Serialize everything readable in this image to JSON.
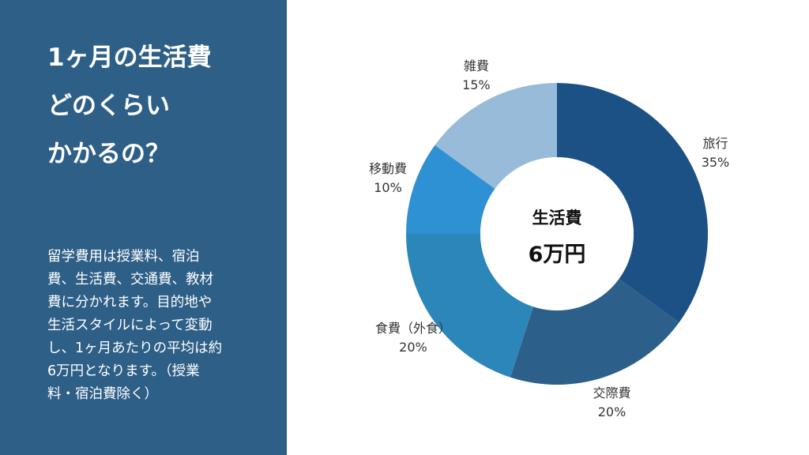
{
  "panel": {
    "title_lines": [
      "1ヶ月の生活費",
      "どのくらい",
      "かかるの？"
    ],
    "body_lines": [
      "留学費用は授業料、宿泊",
      "費、生活費、交通費、教材",
      "費に分かれます。目的地や",
      "生活スタイルによって変動",
      "し、1ヶ月あたりの平均は約",
      "6万円となります。（授業",
      "料・宿泊費除く）"
    ],
    "bg_color": "#2e5f87"
  },
  "chart_data": {
    "type": "pie",
    "donut": true,
    "center_title": "生活費",
    "center_value": "6万円",
    "slices": [
      {
        "label": "旅行",
        "value": 35,
        "value_label": "35%",
        "color": "#1c5186"
      },
      {
        "label": "交際費",
        "value": 20,
        "value_label": "20%",
        "color": "#2c5f89"
      },
      {
        "label": "食費（外食）",
        "value": 20,
        "value_label": "20%",
        "color": "#2b86ba"
      },
      {
        "label": "移動費",
        "value": 10,
        "value_label": "10%",
        "color": "#2e91d4"
      },
      {
        "label": "雑費",
        "value": 15,
        "value_label": "15%",
        "color": "#97bbd9"
      }
    ],
    "start_angle_deg": 0,
    "direction": "clockwise"
  }
}
